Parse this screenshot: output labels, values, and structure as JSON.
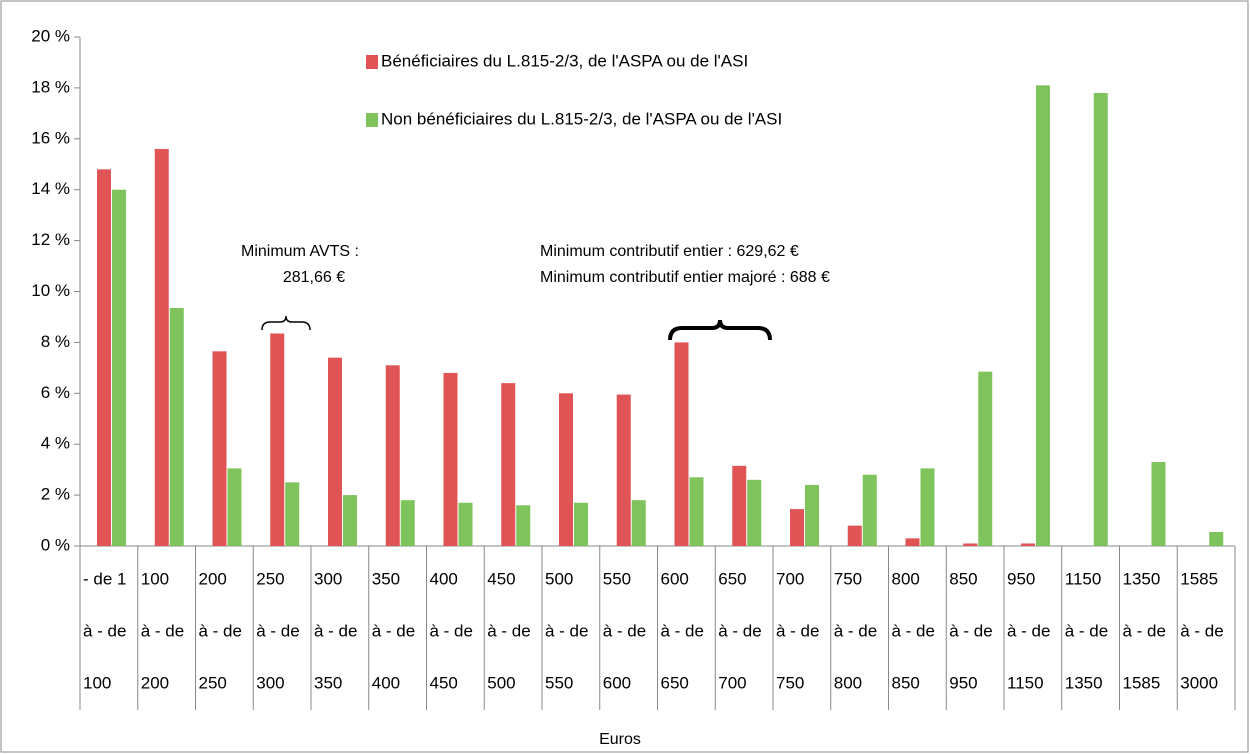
{
  "chart_data": {
    "type": "bar",
    "x_label": "Euros",
    "categories": [
      [
        "- de 1",
        "à - de",
        "100"
      ],
      [
        "100",
        "à - de",
        "200"
      ],
      [
        "200",
        "à - de",
        "250"
      ],
      [
        "250",
        "à - de",
        "300"
      ],
      [
        "300",
        "à - de",
        "350"
      ],
      [
        "350",
        "à - de",
        "400"
      ],
      [
        "400",
        "à - de",
        "450"
      ],
      [
        "450",
        "à - de",
        "500"
      ],
      [
        "500",
        "à - de",
        "550"
      ],
      [
        "550",
        "à - de",
        "600"
      ],
      [
        "600",
        "à - de",
        "650"
      ],
      [
        "650",
        "à - de",
        "700"
      ],
      [
        "700",
        "à - de",
        "750"
      ],
      [
        "750",
        "à - de",
        "800"
      ],
      [
        "800",
        "à - de",
        "850"
      ],
      [
        "850",
        "à - de",
        "950"
      ],
      [
        "950",
        "à - de",
        "1150"
      ],
      [
        "1150",
        "à - de",
        "1350"
      ],
      [
        "1350",
        "à - de",
        "1585"
      ],
      [
        "1585",
        "à - de",
        "3000"
      ]
    ],
    "series": [
      {
        "name": "Bénéficiaires du L.815-2/3, de l'ASPA ou de l'ASI",
        "color": "#e05456",
        "values": [
          14.8,
          15.6,
          7.65,
          8.35,
          7.4,
          7.1,
          6.8,
          6.4,
          6.0,
          5.95,
          8.0,
          3.15,
          1.45,
          0.8,
          0.3,
          0.1,
          0.1,
          0,
          0,
          0
        ]
      },
      {
        "name": "Non bénéficiaires du L.815-2/3, de l'ASPA ou de l'ASI",
        "color": "#7fc35c",
        "values": [
          14.0,
          9.35,
          3.05,
          2.5,
          2.0,
          1.8,
          1.7,
          1.6,
          1.7,
          1.8,
          2.7,
          2.6,
          2.4,
          2.8,
          3.05,
          6.85,
          18.1,
          17.8,
          3.3,
          0.55
        ]
      }
    ],
    "ylim": [
      0,
      20
    ],
    "yticks": [
      {
        "value": 0,
        "label": "0 %"
      },
      {
        "value": 2,
        "label": "2 %"
      },
      {
        "value": 4,
        "label": "4 %"
      },
      {
        "value": 6,
        "label": "6 %"
      },
      {
        "value": 8,
        "label": "8 %"
      },
      {
        "value": 10,
        "label": "10 %"
      },
      {
        "value": 12,
        "label": "12 %"
      },
      {
        "value": 14,
        "label": "14 %"
      },
      {
        "value": 16,
        "label": "16 %"
      },
      {
        "value": 18,
        "label": "18 %"
      },
      {
        "value": 20,
        "label": "20 %"
      }
    ],
    "annotations": [
      "Minimum AVTS :",
      "281,66 €",
      "Minimum contributif entier : 629,62 €",
      "Minimum contributif entier majoré : 688 €"
    ]
  }
}
